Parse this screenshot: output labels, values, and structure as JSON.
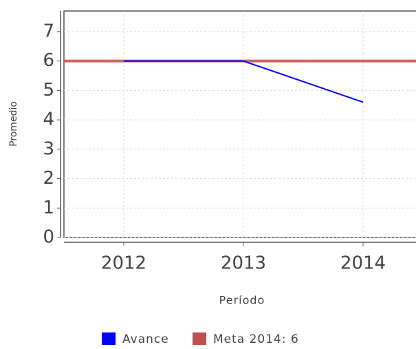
{
  "chart_data": {
    "type": "line",
    "x_label": "Período",
    "y_label": "Promedio",
    "categories": [
      "2012",
      "2013",
      "2014"
    ],
    "series": [
      {
        "name": "Avance",
        "color": "#0000ff",
        "values": [
          6,
          6,
          4.6
        ]
      }
    ],
    "target": {
      "name": "Meta 2014: 6",
      "value": 6,
      "color": "#c0504d"
    },
    "ylim": [
      0,
      7.7
    ],
    "yticks": [
      0,
      1,
      2,
      3,
      4,
      5,
      6,
      7
    ],
    "grid": true
  }
}
